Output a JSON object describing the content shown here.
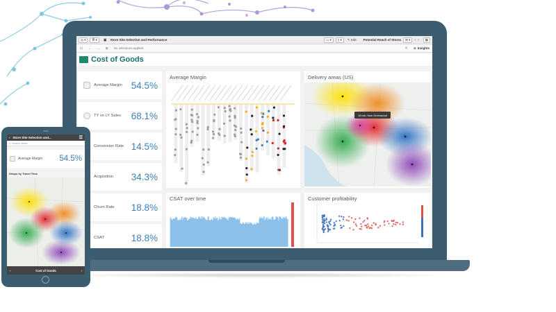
{
  "colors": {
    "device_frame": "#3b5d6f",
    "title_teal": "#1b6e6e",
    "kpi_blue": "#3b7fb8"
  },
  "app": {
    "tab_title": "Store Site Selection and Performance",
    "selections_text": "No selections applied",
    "edit_label": "Edit",
    "bookmark_label": "Potential Reach of Stores",
    "insights_label": "Insights",
    "sheet_title": "Cost of Goods"
  },
  "kpis": [
    {
      "label": "Average Margin",
      "value": "54.5%",
      "icon": "cube-icon"
    },
    {
      "label": "TY vs LY Sales",
      "value": "68.1%",
      "icon": "gear-icon"
    },
    {
      "label": "Conversion Rate",
      "value": "14.5%",
      "icon": "cube-icon"
    },
    {
      "label": "Acquisition",
      "value": "34.3%",
      "icon": "cube-icon"
    },
    {
      "label": "Churn Rate",
      "value": "18.8%",
      "icon": "cube-icon"
    },
    {
      "label": "CSAT",
      "value": "18.8%",
      "icon": "cube-icon"
    }
  ],
  "charts": {
    "margin_title": "Average Margin",
    "delivery_title": "Delivery areas (US)",
    "delivery_tooltip": "18 min. from Greenwood",
    "csat_title": "CSAT over time",
    "profit_title": "Customer profitability"
  },
  "phone": {
    "title": "Store Site Selection and...",
    "search_placeholder": "Search sheet",
    "kpi_label": "Average Margin",
    "kpi_value": "54.5%",
    "map_title": "Shops by Travel Time",
    "bottom_label": "Cost of Goods"
  }
}
